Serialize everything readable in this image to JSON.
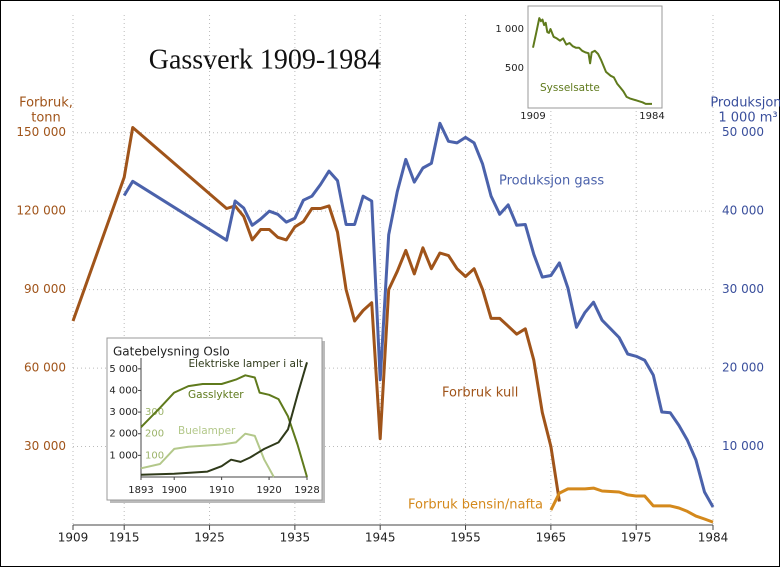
{
  "chart_data": [
    {
      "type": "line",
      "title": "Gassverk 1909-1984",
      "y_label": [
        "Forbruk,",
        "tonn"
      ],
      "y2_label": [
        "Produksjon,",
        "1 000 m³"
      ],
      "xlim": [
        1909,
        1984
      ],
      "xticks": [
        1909,
        1915,
        1925,
        1935,
        1945,
        1955,
        1965,
        1975,
        1984
      ],
      "ylim": [
        0,
        195000
      ],
      "yticks": [
        {
          "value": 30000,
          "label": "30 000"
        },
        {
          "value": 60000,
          "label": "60 000"
        },
        {
          "value": 90000,
          "label": "90 000"
        },
        {
          "value": 120000,
          "label": "120 000"
        },
        {
          "value": 150000,
          "label": "150 000"
        }
      ],
      "y2lim": [
        0,
        65000
      ],
      "y2ticks": [
        {
          "value": 10000,
          "label": "10 000"
        },
        {
          "value": 20000,
          "label": "20 000"
        },
        {
          "value": 30000,
          "label": "30 000"
        },
        {
          "value": 40000,
          "label": "40 000"
        },
        {
          "value": 50000,
          "label": "50 000"
        }
      ],
      "grid": true,
      "ycolor": "#a0541a",
      "y2color": "#3a4f9c",
      "series": [
        {
          "name": "Forbruk kull",
          "color": "#a0541a",
          "x": [
            1909,
            1915,
            1916,
            1927,
            1928,
            1929,
            1930,
            1931,
            1932,
            1933,
            1934,
            1935,
            1936,
            1937,
            1938,
            1939,
            1940,
            1941,
            1942,
            1943,
            1944,
            1945,
            1946,
            1947,
            1948,
            1949,
            1950,
            1951,
            1952,
            1953,
            1954,
            1955,
            1956,
            1957,
            1958,
            1959,
            1960,
            1961,
            1962,
            1963,
            1964,
            1965,
            1966
          ],
          "values": [
            78000,
            133000,
            152000,
            121000,
            122000,
            118000,
            109000,
            113000,
            113000,
            110000,
            109000,
            114000,
            116000,
            121000,
            121000,
            122000,
            112000,
            90000,
            78000,
            82000,
            85000,
            33000,
            90000,
            97000,
            105000,
            96000,
            106000,
            98000,
            104000,
            103000,
            98000,
            95000,
            98000,
            90000,
            79000,
            79000,
            76000,
            73000,
            75000,
            63000,
            43000,
            30000,
            9000
          ]
        },
        {
          "name": "Produksjon gass",
          "color": "#4b62ab",
          "axis": "y2",
          "x": [
            1915,
            1916,
            1927,
            1928,
            1929,
            1930,
            1931,
            1932,
            1933,
            1934,
            1935,
            1936,
            1937,
            1938,
            1939,
            1940,
            1941,
            1942,
            1943,
            1944,
            1945,
            1946,
            1947,
            1948,
            1949,
            1950,
            1951,
            1952,
            1953,
            1954,
            1955,
            1956,
            1957,
            1958,
            1959,
            1960,
            1961,
            1962,
            1963,
            1964,
            1965,
            1966,
            1967,
            1968,
            1969,
            1970,
            1971,
            1972,
            1973,
            1974,
            1975,
            1976,
            1977,
            1978,
            1979,
            1980,
            1981,
            1982,
            1983,
            1984
          ],
          "values": [
            42000,
            43800,
            36300,
            41300,
            40400,
            38200,
            39000,
            40000,
            39600,
            38600,
            39100,
            41400,
            41900,
            43400,
            45100,
            43900,
            38300,
            38300,
            41900,
            41300,
            18500,
            37000,
            42500,
            46600,
            43700,
            45500,
            46100,
            51200,
            48900,
            48700,
            49400,
            48700,
            46000,
            41900,
            39600,
            40800,
            38200,
            38300,
            34500,
            31600,
            31800,
            33400,
            30200,
            25200,
            27100,
            28400,
            26100,
            25000,
            23900,
            21800,
            21500,
            21000,
            19100,
            14400,
            14300,
            12700,
            10800,
            8300,
            4200,
            2300
          ]
        },
        {
          "name": "Forbruk bensin/nafta",
          "color": "#d4891c",
          "x": [
            1965,
            1966,
            1967,
            1968,
            1969,
            1970,
            1971,
            1972,
            1973,
            1974,
            1975,
            1976,
            1977,
            1978,
            1979,
            1980,
            1981,
            1982,
            1983,
            1984
          ],
          "values": [
            5700,
            12200,
            13800,
            13800,
            13800,
            14100,
            13000,
            12800,
            12600,
            11500,
            11100,
            11100,
            7300,
            7300,
            7300,
            6500,
            5200,
            3400,
            2300,
            1100
          ]
        }
      ]
    },
    {
      "type": "line",
      "xlim": [
        1909,
        1984
      ],
      "xticks": [
        1909,
        1984
      ],
      "ylim": [
        0,
        1200
      ],
      "yticks": [
        {
          "value": 1000,
          "label": "1 000"
        },
        500
      ],
      "ycolor": "#222",
      "series": [
        {
          "name": "Sysselsatte",
          "color": "#5f7a1c",
          "x": [
            1909,
            1911,
            1913,
            1914,
            1915,
            1916,
            1917,
            1918,
            1919,
            1920,
            1922,
            1924,
            1926,
            1928,
            1930,
            1932,
            1934,
            1936,
            1938,
            1940,
            1942,
            1944,
            1945,
            1946,
            1948,
            1950,
            1952,
            1955,
            1958,
            1960,
            1962,
            1964,
            1966,
            1968,
            1970,
            1975,
            1978,
            1980,
            1984
          ],
          "values": [
            760,
            950,
            1140,
            1100,
            1120,
            1050,
            1080,
            960,
            950,
            1000,
            900,
            880,
            850,
            880,
            800,
            820,
            780,
            760,
            760,
            720,
            700,
            690,
            560,
            700,
            720,
            680,
            600,
            450,
            400,
            380,
            300,
            250,
            200,
            130,
            110,
            80,
            60,
            40,
            40
          ]
        }
      ]
    },
    {
      "type": "line",
      "title": "Gatebelysning Oslo",
      "xlim": [
        1893,
        1928
      ],
      "xticks": [
        1893,
        1900,
        1910,
        1920,
        1928
      ],
      "ylim": [
        0,
        5500
      ],
      "yticks": [
        {
          "value": 1000,
          "label": "1 000"
        },
        {
          "value": 2000,
          "label": "2 000"
        },
        {
          "value": 3000,
          "label": "3 000"
        },
        {
          "value": 4000,
          "label": "4 000"
        },
        {
          "value": 5000,
          "label": "5 000"
        }
      ],
      "y2lim": [
        0,
        550
      ],
      "y2ticks": [
        100,
        200,
        300
      ],
      "ycolor": "#222",
      "y2color": "#9cb46a",
      "series": [
        {
          "name": "Gasslykter",
          "color": "#5f7a1c",
          "x": [
            1893,
            1897,
            1900,
            1903,
            1906,
            1910,
            1913,
            1915,
            1917,
            1918,
            1920,
            1922,
            1924,
            1926,
            1928
          ],
          "values": [
            2300,
            3200,
            3900,
            4200,
            4300,
            4300,
            4500,
            4700,
            4600,
            3900,
            3800,
            3600,
            2800,
            1500,
            0
          ]
        },
        {
          "name": "Buelamper",
          "color": "#b3c88a",
          "axis": "y2",
          "x": [
            1893,
            1897,
            1900,
            1903,
            1910,
            1913,
            1915,
            1917,
            1919,
            1920,
            1921
          ],
          "values": [
            40,
            60,
            130,
            140,
            150,
            160,
            200,
            190,
            80,
            40,
            0
          ]
        },
        {
          "name": "Elektriske lamper i alt",
          "color": "#2f3a1a",
          "x": [
            1893,
            1900,
            1907,
            1910,
            1912,
            1914,
            1916,
            1919,
            1922,
            1924,
            1926,
            1928
          ],
          "values": [
            100,
            150,
            250,
            500,
            800,
            700,
            900,
            1300,
            1600,
            2200,
            3800,
            5300
          ]
        }
      ]
    }
  ]
}
